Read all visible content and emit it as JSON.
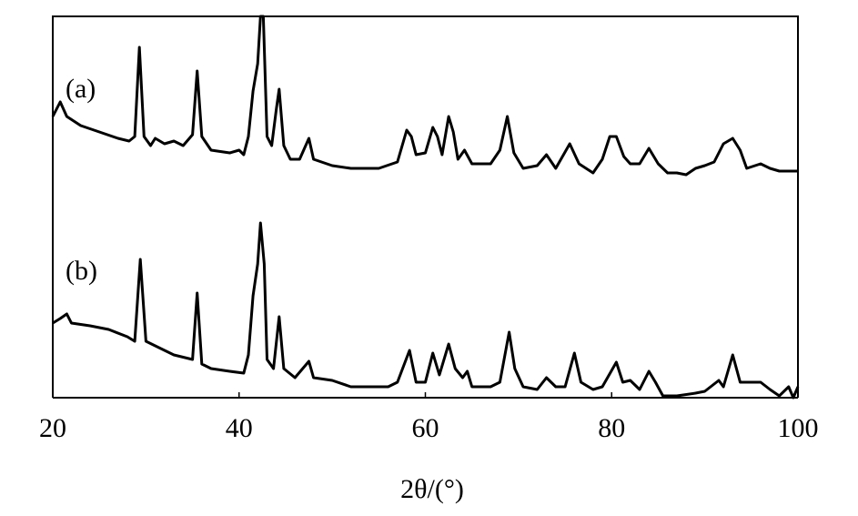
{
  "chart_data": {
    "type": "line",
    "x_label": "2θ/(°)",
    "xlim": [
      20,
      100
    ],
    "xticks": [
      20,
      40,
      60,
      80,
      100
    ],
    "ylim": [
      0,
      419
    ],
    "series": [
      {
        "name": "(a)",
        "color": "#000000",
        "x": [
          20,
          20.8,
          21.5,
          23,
          25,
          27,
          28.2,
          28.8,
          29.3,
          29.8,
          30.5,
          31,
          32,
          33,
          34,
          35,
          35.5,
          36,
          37,
          39,
          40,
          40.5,
          41,
          41.5,
          42,
          42.3,
          42.6,
          43,
          43.5,
          44,
          44.3,
          44.8,
          45.5,
          46.5,
          47.5,
          48,
          50,
          52,
          55,
          57,
          58,
          58.5,
          59,
          60,
          60.8,
          61.3,
          61.8,
          62.5,
          63,
          63.5,
          64.2,
          65,
          67,
          68,
          68.8,
          69.5,
          70.5,
          72,
          73,
          74,
          75.5,
          76.5,
          78,
          79,
          79.8,
          80.5,
          81.3,
          82,
          83,
          84,
          85,
          86,
          87,
          88,
          89,
          90,
          91,
          92,
          93,
          93.8,
          94.5,
          96,
          97,
          98,
          100
        ],
        "values": [
          309,
          325,
          309,
          299,
          292,
          285,
          282,
          287,
          385,
          287,
          277,
          285,
          279,
          282,
          277,
          289,
          359,
          287,
          272,
          269,
          272,
          267,
          287,
          337,
          367,
          419,
          419,
          287,
          277,
          317,
          339,
          277,
          262,
          262,
          285,
          262,
          255,
          252,
          252,
          259,
          294,
          287,
          267,
          269,
          297,
          287,
          267,
          309,
          292,
          262,
          272,
          257,
          257,
          272,
          309,
          269,
          252,
          255,
          267,
          252,
          279,
          257,
          247,
          262,
          287,
          287,
          265,
          257,
          257,
          274,
          257,
          247,
          247,
          245,
          252,
          255,
          259,
          279,
          285,
          272,
          252,
          257,
          252,
          249,
          249
        ]
      },
      {
        "name": "(b)",
        "color": "#000000",
        "x": [
          20,
          20.8,
          21.5,
          22,
          24,
          26,
          28,
          28.8,
          29.4,
          30,
          31,
          33,
          35,
          35.5,
          36,
          37,
          39,
          40.5,
          41,
          41.5,
          42,
          42.3,
          42.7,
          43,
          43.7,
          44.3,
          44.8,
          46,
          47.5,
          48,
          50,
          52,
          54,
          56,
          57,
          58.3,
          59,
          60,
          60.8,
          61.5,
          62.5,
          63.2,
          64,
          64.5,
          65,
          67,
          68,
          69,
          69.6,
          70.5,
          72,
          73,
          74,
          75,
          76,
          76.7,
          78,
          79,
          80.5,
          81.2,
          82,
          83,
          84,
          84.7,
          85.5,
          87,
          89,
          90,
          91.5,
          92,
          93,
          93.8,
          95,
          96,
          97,
          98,
          99,
          99.5,
          100
        ],
        "values": [
          82,
          87,
          92,
          82,
          79,
          75,
          67,
          62,
          152,
          62,
          57,
          47,
          42,
          115,
          37,
          32,
          29,
          27,
          47,
          112,
          147,
          192,
          147,
          42,
          32,
          89,
          32,
          22,
          40,
          22,
          19,
          12,
          12,
          12,
          17,
          52,
          17,
          17,
          49,
          25,
          59,
          32,
          22,
          29,
          12,
          12,
          17,
          72,
          32,
          12,
          9,
          22,
          12,
          12,
          49,
          17,
          9,
          12,
          39,
          17,
          19,
          9,
          29,
          17,
          2,
          2,
          5,
          7,
          19,
          12,
          47,
          17,
          17,
          17,
          9,
          2,
          12,
          0,
          12
        ]
      }
    ]
  }
}
